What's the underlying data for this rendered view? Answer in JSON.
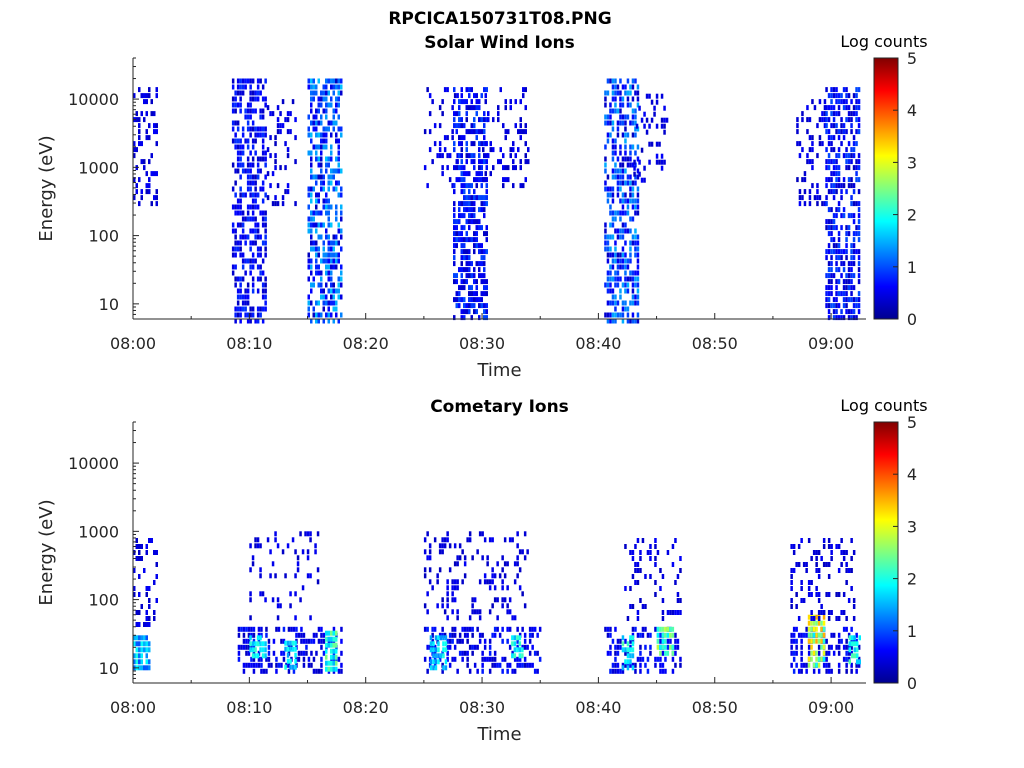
{
  "figure_title": "RPCICA150731T08.PNG",
  "chart_data": [
    {
      "type": "heatmap",
      "title": "Solar Wind Ions",
      "xlabel": "Time",
      "ylabel": "Energy (eV)",
      "y_scale": "log",
      "ylim": [
        6,
        40000
      ],
      "xlim": [
        "08:00",
        "09:03"
      ],
      "x_ticks": [
        "08:00",
        "08:10",
        "08:20",
        "08:30",
        "08:40",
        "08:50",
        "09:00"
      ],
      "y_ticks": [
        "10",
        "100",
        "1000",
        "10000"
      ],
      "colorbar": {
        "label": "Log counts",
        "range": [
          0,
          5
        ],
        "ticks": [
          "0",
          "1",
          "2",
          "3",
          "4",
          "5"
        ],
        "colormap": "jet"
      },
      "regions": [
        {
          "t_start": "08:00",
          "t_end": "08:02",
          "e_min": 300,
          "e_max": 15000,
          "level_min": 0.3,
          "level_max": 0.6,
          "density": 0.35
        },
        {
          "t_start": "08:08.5",
          "t_end": "08:11.5",
          "e_min": 6,
          "e_max": 20000,
          "level_min": 0.3,
          "level_max": 0.9,
          "density": 0.55
        },
        {
          "t_start": "08:11.5",
          "t_end": "08:14",
          "e_min": 300,
          "e_max": 10000,
          "level_min": 0.3,
          "level_max": 0.6,
          "density": 0.2
        },
        {
          "t_start": "08:15",
          "t_end": "08:18",
          "e_min": 6,
          "e_max": 20000,
          "level_min": 0.3,
          "level_max": 1.6,
          "density": 0.6
        },
        {
          "t_start": "08:25",
          "t_end": "08:28",
          "e_min": 400,
          "e_max": 15000,
          "level_min": 0.3,
          "level_max": 0.6,
          "density": 0.22
        },
        {
          "t_start": "08:27.5",
          "t_end": "08:30.5",
          "e_min": 6,
          "e_max": 15000,
          "level_min": 0.3,
          "level_max": 1.0,
          "density": 0.6
        },
        {
          "t_start": "08:30",
          "t_end": "08:34",
          "e_min": 500,
          "e_max": 15000,
          "level_min": 0.3,
          "level_max": 0.6,
          "density": 0.2
        },
        {
          "t_start": "08:40.5",
          "t_end": "08:43.5",
          "e_min": 6,
          "e_max": 20000,
          "level_min": 0.3,
          "level_max": 1.5,
          "density": 0.6
        },
        {
          "t_start": "08:43",
          "t_end": "08:46",
          "e_min": 600,
          "e_max": 12000,
          "level_min": 0.3,
          "level_max": 0.6,
          "density": 0.22
        },
        {
          "t_start": "08:57",
          "t_end": "08:59.5",
          "e_min": 300,
          "e_max": 10000,
          "level_min": 0.3,
          "level_max": 0.6,
          "density": 0.25
        },
        {
          "t_start": "08:59.5",
          "t_end": "09:02.5",
          "e_min": 6,
          "e_max": 15000,
          "level_min": 0.3,
          "level_max": 1.0,
          "density": 0.6
        }
      ]
    },
    {
      "type": "heatmap",
      "title": "Cometary Ions",
      "xlabel": "Time",
      "ylabel": "Energy (eV)",
      "y_scale": "log",
      "ylim": [
        6,
        40000
      ],
      "xlim": [
        "08:00",
        "09:03"
      ],
      "x_ticks": [
        "08:00",
        "08:10",
        "08:20",
        "08:30",
        "08:40",
        "08:50",
        "09:00"
      ],
      "y_ticks": [
        "10",
        "100",
        "1000",
        "10000"
      ],
      "colorbar": {
        "label": "Log counts",
        "range": [
          0,
          5
        ],
        "ticks": [
          "0",
          "1",
          "2",
          "3",
          "4",
          "5"
        ],
        "colormap": "jet"
      },
      "regions": [
        {
          "t_start": "08:00",
          "t_end": "08:02",
          "e_min": 40,
          "e_max": 800,
          "level_min": 0.3,
          "level_max": 0.6,
          "density": 0.3
        },
        {
          "t_start": "08:00",
          "t_end": "08:01.5",
          "e_min": 10,
          "e_max": 30,
          "level_min": 1.0,
          "level_max": 2.0,
          "density": 0.85
        },
        {
          "t_start": "08:09",
          "t_end": "08:18",
          "e_min": 8,
          "e_max": 40,
          "level_min": 0.3,
          "level_max": 0.8,
          "density": 0.4
        },
        {
          "t_start": "08:10",
          "t_end": "08:11.5",
          "e_min": 15,
          "e_max": 30,
          "level_min": 1.5,
          "level_max": 2.2,
          "density": 0.8
        },
        {
          "t_start": "08:13",
          "t_end": "08:14",
          "e_min": 10,
          "e_max": 25,
          "level_min": 1.2,
          "level_max": 2.0,
          "density": 0.8
        },
        {
          "t_start": "08:16.5",
          "t_end": "08:17.5",
          "e_min": 10,
          "e_max": 35,
          "level_min": 1.5,
          "level_max": 2.5,
          "density": 0.85
        },
        {
          "t_start": "08:10",
          "t_end": "08:16",
          "e_min": 50,
          "e_max": 1000,
          "level_min": 0.3,
          "level_max": 0.6,
          "density": 0.18
        },
        {
          "t_start": "08:25",
          "t_end": "08:35",
          "e_min": 8,
          "e_max": 40,
          "level_min": 0.3,
          "level_max": 0.8,
          "density": 0.45
        },
        {
          "t_start": "08:25.5",
          "t_end": "08:27",
          "e_min": 10,
          "e_max": 30,
          "level_min": 1.3,
          "level_max": 2.0,
          "density": 0.8
        },
        {
          "t_start": "08:32.5",
          "t_end": "08:33.5",
          "e_min": 15,
          "e_max": 30,
          "level_min": 1.5,
          "level_max": 2.2,
          "density": 0.8
        },
        {
          "t_start": "08:25",
          "t_end": "08:34",
          "e_min": 50,
          "e_max": 1000,
          "level_min": 0.3,
          "level_max": 0.6,
          "density": 0.2
        },
        {
          "t_start": "08:40.5",
          "t_end": "08:47",
          "e_min": 8,
          "e_max": 40,
          "level_min": 0.3,
          "level_max": 0.8,
          "density": 0.4
        },
        {
          "t_start": "08:42",
          "t_end": "08:43",
          "e_min": 10,
          "e_max": 30,
          "level_min": 1.5,
          "level_max": 2.3,
          "density": 0.8
        },
        {
          "t_start": "08:45",
          "t_end": "08:46.5",
          "e_min": 15,
          "e_max": 40,
          "level_min": 1.8,
          "level_max": 2.8,
          "density": 0.85
        },
        {
          "t_start": "08:42",
          "t_end": "08:47",
          "e_min": 50,
          "e_max": 800,
          "level_min": 0.3,
          "level_max": 0.6,
          "density": 0.2
        },
        {
          "t_start": "08:56.5",
          "t_end": "09:02.5",
          "e_min": 8,
          "e_max": 40,
          "level_min": 0.3,
          "level_max": 0.8,
          "density": 0.4
        },
        {
          "t_start": "08:58",
          "t_end": "08:59.5",
          "e_min": 10,
          "e_max": 60,
          "level_min": 1.8,
          "level_max": 3.6,
          "density": 0.85
        },
        {
          "t_start": "09:01.5",
          "t_end": "09:02.5",
          "e_min": 12,
          "e_max": 30,
          "level_min": 1.5,
          "level_max": 2.3,
          "density": 0.8
        },
        {
          "t_start": "08:56.5",
          "t_end": "09:02",
          "e_min": 50,
          "e_max": 800,
          "level_min": 0.3,
          "level_max": 0.6,
          "density": 0.25
        }
      ]
    }
  ]
}
